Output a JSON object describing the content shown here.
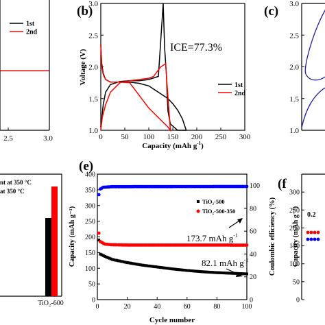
{
  "panels": {
    "a": {
      "legend": [
        "1st",
        "2nd"
      ],
      "xticks": [
        "2.5",
        "3.0"
      ]
    },
    "b": {
      "label": "(b)",
      "annotation": "ICE=77.3%",
      "xlabel": "Capacity (mAh g",
      "xlabel_sup": "-1",
      "xlabel_end": ")",
      "ylabel": "Voltage (V)",
      "xticks": [
        "0",
        "50",
        "100",
        "150",
        "200",
        "250",
        "300"
      ],
      "yticks": [
        "1.0",
        "1.5",
        "2.0",
        "2.5",
        "3.0"
      ],
      "legend": [
        "1st",
        "2nd"
      ]
    },
    "c": {
      "label": "(c)",
      "yticks": [
        "3.0",
        "2.5",
        "2.0",
        "1.5",
        "1.0"
      ]
    },
    "d": {
      "legend": [
        "nt at 350 °C",
        "at 350 °C"
      ],
      "xtick": "TiO₂-600"
    },
    "e": {
      "label": "(e)",
      "xlabel": "Cycle number",
      "ylabel": "Capacity (mAh g⁻¹)",
      "ylabel_right": "Coulombic efficiency (%)",
      "xticks": [
        "0",
        "20",
        "40",
        "60",
        "80",
        "100"
      ],
      "yticks": [
        "0",
        "50",
        "100",
        "150",
        "200",
        "250",
        "300",
        "350",
        "400"
      ],
      "yticks_right": [
        "0",
        "20",
        "40",
        "60",
        "80",
        "100"
      ],
      "legend": [
        "TiO₂-500",
        "TiO₂-500-350"
      ],
      "annotation1": "173.7 mAh g",
      "annotation1_sup": "-1",
      "annotation2": "82.1 mAh g",
      "annotation2_sup": "-1"
    },
    "f": {
      "label": "(f",
      "ylabel": "Capacity (mAh g⁻¹)",
      "yticks": [
        "300",
        "250",
        "200",
        "150",
        "100",
        "50",
        "0"
      ],
      "annotation": "0.2"
    }
  },
  "chart_data": [
    {
      "panel": "b",
      "type": "line",
      "xlabel": "Capacity (mAh g-1)",
      "ylabel": "Voltage (V)",
      "xlim": [
        0,
        300
      ],
      "ylim": [
        1.0,
        3.0
      ],
      "annotations": [
        "ICE=77.3%"
      ],
      "series": [
        {
          "name": "1st",
          "color": "#000000",
          "x": [
            0,
            2,
            5,
            10,
            20,
            40,
            60,
            80,
            100,
            120,
            140,
            150,
            160,
            170,
            178,
            178,
            160,
            145,
            140,
            138,
            137,
            133,
            130,
            120,
            100,
            80,
            60,
            40,
            20,
            10,
            5,
            0
          ],
          "y": [
            2.35,
            2.05,
            1.9,
            1.8,
            1.76,
            1.76,
            1.76,
            1.74,
            1.7,
            1.6,
            1.5,
            1.42,
            1.32,
            1.18,
            1.0,
            1.0,
            1.0,
            1.1,
            1.3,
            1.6,
            1.85,
            2.3,
            3.0,
            1.85,
            1.8,
            1.78,
            1.78,
            1.77,
            1.72,
            1.6,
            1.4,
            1.05
          ]
        },
        {
          "name": "2nd",
          "color": "#ff0000",
          "x": [
            0,
            2,
            5,
            10,
            20,
            40,
            60,
            80,
            100,
            120,
            140,
            145,
            145,
            135,
            125,
            120,
            110,
            100,
            80,
            60,
            40,
            20,
            10,
            3,
            0
          ],
          "y": [
            2.35,
            2.0,
            1.88,
            1.8,
            1.76,
            1.76,
            1.75,
            1.55,
            1.35,
            1.2,
            1.05,
            1.0,
            1.0,
            2.05,
            2.0,
            1.95,
            1.85,
            1.82,
            1.8,
            1.78,
            1.75,
            1.6,
            1.4,
            1.2,
            1.0
          ]
        }
      ]
    },
    {
      "panel": "e",
      "type": "scatter",
      "xlabel": "Cycle number",
      "ylabel": "Capacity (mAh g-1)",
      "ylabel_right": "Coulombic efficiency (%)",
      "xlim": [
        0,
        100
      ],
      "ylim": [
        0,
        400
      ],
      "ylim_right": [
        0,
        110
      ],
      "annotations": [
        "173.7 mAh g-1",
        "82.1 mAh g-1"
      ],
      "series": [
        {
          "name": "TiO₂-500",
          "color": "#000000",
          "axis": "left",
          "x_start": 1,
          "x_end": 100,
          "values_key": [
            [
              1,
              190
            ],
            [
              2,
              145
            ],
            [
              5,
              138
            ],
            [
              10,
              128
            ],
            [
              20,
              118
            ],
            [
              30,
              110
            ],
            [
              40,
              104
            ],
            [
              50,
              98
            ],
            [
              60,
              93
            ],
            [
              70,
              89
            ],
            [
              80,
              86
            ],
            [
              90,
              84
            ],
            [
              100,
              82.1
            ]
          ]
        },
        {
          "name": "TiO₂-500-350",
          "color": "#ff0000",
          "axis": "left",
          "x_start": 1,
          "x_end": 100,
          "values_key": [
            [
              1,
              212
            ],
            [
              2,
              185
            ],
            [
              5,
              177
            ],
            [
              10,
              175
            ],
            [
              20,
              174
            ],
            [
              40,
              174
            ],
            [
              60,
              174
            ],
            [
              80,
              174
            ],
            [
              100,
              173.7
            ]
          ]
        },
        {
          "name": "CE",
          "color": "#0000ff",
          "axis": "right",
          "x_start": 1,
          "x_end": 100,
          "values_key": [
            [
              1,
              92
            ],
            [
              2,
              97
            ],
            [
              4,
              98.5
            ],
            [
              10,
              99
            ],
            [
              100,
              99.2
            ]
          ]
        }
      ]
    }
  ]
}
